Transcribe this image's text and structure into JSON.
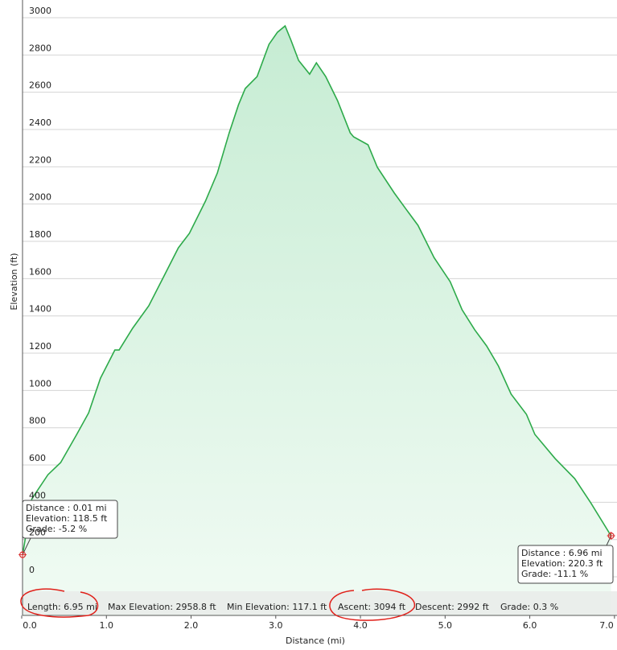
{
  "chart_data": {
    "type": "area",
    "y_label": "Elevation (ft)",
    "x_label": "Distance  (mi)",
    "color": "#2daa4a",
    "grid": true,
    "xlim": [
      0,
      7.03
    ],
    "ylim": [
      -207,
      3095
    ],
    "xticks": [
      {
        "value": 0,
        "label": "0.0"
      },
      {
        "value": 1,
        "label": "1.0"
      },
      {
        "value": 2,
        "label": "2.0"
      },
      {
        "value": 3,
        "label": "3.0"
      },
      {
        "value": 4,
        "label": "4.0"
      },
      {
        "value": 5,
        "label": "5.0"
      },
      {
        "value": 6,
        "label": "6.0"
      },
      {
        "value": 7,
        "label": "7.0"
      }
    ],
    "yticks": [
      0,
      200,
      400,
      600,
      800,
      1000,
      1200,
      1400,
      1600,
      1800,
      2000,
      2200,
      2400,
      2600,
      2800,
      3000
    ],
    "x": [
      0.01,
      0.12,
      0.31,
      0.46,
      0.65,
      0.79,
      0.93,
      1.1,
      1.15,
      1.31,
      1.5,
      1.67,
      1.85,
      1.98,
      2.17,
      2.31,
      2.45,
      2.56,
      2.64,
      2.78,
      2.92,
      3.02,
      3.11,
      3.18,
      3.27,
      3.4,
      3.48,
      3.59,
      3.73,
      3.88,
      3.92,
      4.09,
      4.2,
      4.4,
      4.54,
      4.68,
      4.87,
      5.06,
      5.2,
      5.35,
      5.49,
      5.63,
      5.78,
      5.96,
      6.06,
      6.3,
      6.53,
      6.72,
      6.96
    ],
    "values": [
      118.5,
      419,
      548,
      613,
      764,
      880,
      1066,
      1217,
      1217,
      1334,
      1454,
      1605,
      1765,
      1843,
      2016,
      2167,
      2382,
      2533,
      2620,
      2684,
      2857,
      2922,
      2956,
      2879,
      2771,
      2697,
      2758,
      2684,
      2555,
      2382,
      2361,
      2318,
      2197,
      2059,
      1972,
      1886,
      1713,
      1584,
      1433,
      1325,
      1239,
      1131,
      980,
      872,
      764,
      634,
      527,
      397,
      220.3
    ],
    "tooltips": [
      {
        "lines": [
          "Distance : 0.01 mi",
          "Elevation: 118.5 ft",
          "Grade: -5.2 %"
        ]
      },
      {
        "lines": [
          "Distance : 6.96 mi",
          "Elevation: 220.3 ft",
          "Grade: -11.1 %"
        ]
      }
    ],
    "stats": [
      "Length: 6.95 mi",
      "Max Elevation: 2958.8 ft",
      "Min Elevation: 117.1 ft",
      "Ascent: 3094 ft",
      "Descent: 2992 ft",
      "Grade: 0.3 %"
    ]
  }
}
